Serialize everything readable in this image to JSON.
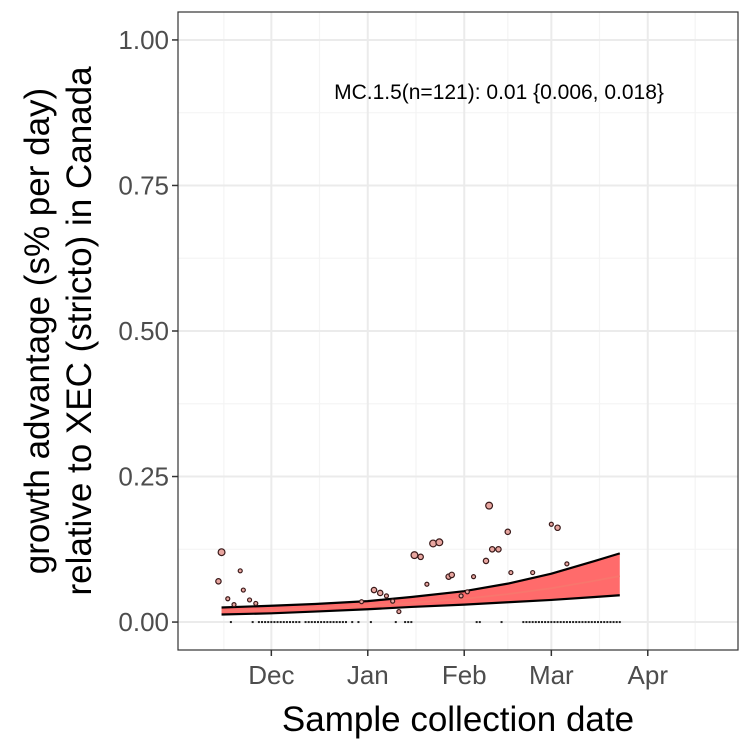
{
  "chart_data": {
    "type": "line",
    "xlabel": "Sample collection date",
    "ylabel_lines": [
      "growth advantage (s% per day)",
      "relative to XEC (stricto) in Canada"
    ],
    "annotation": "MC.1.5(n=121): 0.01 {0.006, 0.018}",
    "x_ticks": [
      {
        "date": "2024-12-01",
        "label": "Dec"
      },
      {
        "date": "2025-01-01",
        "label": "Jan"
      },
      {
        "date": "2025-02-01",
        "label": "Feb"
      },
      {
        "date": "2025-03-01",
        "label": "Mar"
      },
      {
        "date": "2025-04-01",
        "label": "Apr"
      }
    ],
    "y_ticks": [
      {
        "value": 0.0,
        "label": "0.00"
      },
      {
        "value": 0.25,
        "label": "0.25"
      },
      {
        "value": 0.5,
        "label": "0.50"
      },
      {
        "value": 0.75,
        "label": "0.75"
      },
      {
        "value": 1.0,
        "label": "1.00"
      }
    ],
    "xlim": [
      "2024-11-01",
      "2025-04-30"
    ],
    "ylim": [
      -0.048,
      1.048
    ],
    "grid": true,
    "colors": {
      "fit_line": "#f8766d",
      "ribbon_fill": "#ff6b6b",
      "ribbon_border": "#000000",
      "points_fill": "#e8a6a0",
      "points_stroke": "#3a1a1a",
      "grid_major": "#ebebeb",
      "grid_minor": "#f4f4f4",
      "panel_border": "#333333"
    },
    "series": [
      {
        "role": "fit",
        "x": [
          "2024-11-15",
          "2024-12-01",
          "2024-12-15",
          "2025-01-01",
          "2025-01-15",
          "2025-02-01",
          "2025-02-15",
          "2025-03-01",
          "2025-03-15",
          "2025-03-23"
        ],
        "y": [
          0.019,
          0.021,
          0.024,
          0.028,
          0.033,
          0.04,
          0.048,
          0.058,
          0.071,
          0.079
        ],
        "lower": [
          0.013,
          0.015,
          0.018,
          0.022,
          0.026,
          0.03,
          0.034,
          0.038,
          0.043,
          0.046
        ],
        "upper": [
          0.025,
          0.028,
          0.031,
          0.036,
          0.043,
          0.053,
          0.066,
          0.083,
          0.105,
          0.118
        ]
      },
      {
        "role": "observed",
        "points": [
          {
            "x": "2024-11-14",
            "y": 0.07,
            "n": 2
          },
          {
            "x": "2024-11-15",
            "y": 0.12,
            "n": 3
          },
          {
            "x": "2024-11-17",
            "y": 0.04,
            "n": 1
          },
          {
            "x": "2024-11-19",
            "y": 0.03,
            "n": 1
          },
          {
            "x": "2024-11-21",
            "y": 0.088,
            "n": 1
          },
          {
            "x": "2024-11-22",
            "y": 0.055,
            "n": 1
          },
          {
            "x": "2024-11-24",
            "y": 0.038,
            "n": 1
          },
          {
            "x": "2024-11-26",
            "y": 0.032,
            "n": 1
          },
          {
            "x": "2024-12-30",
            "y": 0.035,
            "n": 1
          },
          {
            "x": "2025-01-03",
            "y": 0.055,
            "n": 2
          },
          {
            "x": "2025-01-05",
            "y": 0.05,
            "n": 2
          },
          {
            "x": "2025-01-07",
            "y": 0.045,
            "n": 1
          },
          {
            "x": "2025-01-09",
            "y": 0.036,
            "n": 1
          },
          {
            "x": "2025-01-11",
            "y": 0.018,
            "n": 1
          },
          {
            "x": "2025-01-16",
            "y": 0.115,
            "n": 3
          },
          {
            "x": "2025-01-18",
            "y": 0.112,
            "n": 2
          },
          {
            "x": "2025-01-20",
            "y": 0.065,
            "n": 1
          },
          {
            "x": "2025-01-22",
            "y": 0.135,
            "n": 3
          },
          {
            "x": "2025-01-24",
            "y": 0.137,
            "n": 3
          },
          {
            "x": "2025-01-27",
            "y": 0.078,
            "n": 2
          },
          {
            "x": "2025-01-28",
            "y": 0.081,
            "n": 2
          },
          {
            "x": "2025-01-31",
            "y": 0.045,
            "n": 1
          },
          {
            "x": "2025-02-02",
            "y": 0.052,
            "n": 1
          },
          {
            "x": "2025-02-04",
            "y": 0.078,
            "n": 1
          },
          {
            "x": "2025-02-08",
            "y": 0.105,
            "n": 2
          },
          {
            "x": "2025-02-09",
            "y": 0.2,
            "n": 3
          },
          {
            "x": "2025-02-10",
            "y": 0.125,
            "n": 2
          },
          {
            "x": "2025-02-12",
            "y": 0.125,
            "n": 2
          },
          {
            "x": "2025-02-15",
            "y": 0.155,
            "n": 2
          },
          {
            "x": "2025-02-16",
            "y": 0.085,
            "n": 1
          },
          {
            "x": "2025-02-23",
            "y": 0.085,
            "n": 1
          },
          {
            "x": "2025-03-01",
            "y": 0.168,
            "n": 1
          },
          {
            "x": "2025-03-03",
            "y": 0.162,
            "n": 2
          },
          {
            "x": "2025-03-06",
            "y": 0.1,
            "n": 1
          }
        ]
      },
      {
        "role": "zero-count days",
        "ranges": [
          [
            "2024-11-27",
            "2024-12-10"
          ],
          [
            "2024-12-12",
            "2024-12-25"
          ],
          [
            "2025-01-13",
            "2025-01-15"
          ],
          [
            "2025-02-20",
            "2025-03-23"
          ]
        ],
        "singles": [
          "2024-11-18",
          "2024-11-25",
          "2024-12-27",
          "2024-12-29",
          "2025-01-02",
          "2025-01-10",
          "2025-02-05",
          "2025-02-06",
          "2025-02-13"
        ],
        "y": 0.0
      }
    ]
  }
}
